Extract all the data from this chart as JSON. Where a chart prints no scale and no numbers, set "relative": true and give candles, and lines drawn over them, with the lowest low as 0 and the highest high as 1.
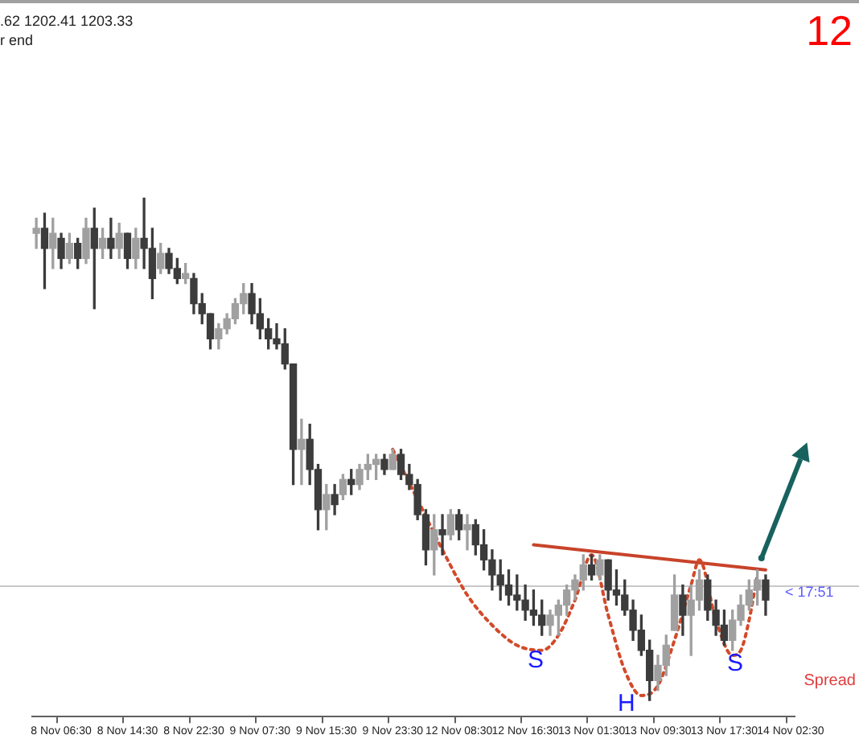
{
  "chart_data": {
    "type": "candlestick",
    "relative": true,
    "colors": [
      "#a0a0a0",
      "#3c3c3c",
      "#a0a0a0",
      "#3c3c3c",
      "#a0a0a0",
      "#3c3c3c",
      "#a0a0a0",
      "#3c3c3c",
      "#a0a0a0",
      "#3c3c3c",
      "#a0a0a0",
      "#3c3c3c",
      "#a0a0a0",
      "#3c3c3c",
      "#3c3c3c",
      "#a0a0a0",
      "#3c3c3c",
      "#3c3c3c",
      "#a0a0a0",
      "#3c3c3c",
      "#3c3c3c",
      "#3c3c3c",
      "#a0a0a0",
      "#a0a0a0",
      "#a0a0a0",
      "#a0a0a0",
      "#3c3c3c",
      "#3c3c3c",
      "#3c3c3c",
      "#3c3c3c",
      "#3c3c3c",
      "#3c3c3c",
      "#a0a0a0",
      "#3c3c3c",
      "#3c3c3c",
      "#a0a0a0",
      "#3c3c3c",
      "#a0a0a0",
      "#3c3c3c",
      "#a0a0a0",
      "#a0a0a0",
      "#a0a0a0",
      "#3c3c3c",
      "#a0a0a0",
      "#3c3c3c",
      "#3c3c3c",
      "#3c3c3c",
      "#3c3c3c",
      "#a0a0a0",
      "#3c3c3c",
      "#a0a0a0",
      "#3c3c3c",
      "#a0a0a0",
      "#3c3c3c",
      "#3c3c3c",
      "#3c3c3c",
      "#3c3c3c",
      "#3c3c3c",
      "#3c3c3c",
      "#3c3c3c",
      "#3c3c3c",
      "#3c3c3c",
      "#a0a0a0",
      "#a0a0a0",
      "#a0a0a0",
      "#a0a0a0",
      "#a0a0a0",
      "#3c3c3c",
      "#a0a0a0",
      "#3c3c3c",
      "#3c3c3c",
      "#3c3c3c",
      "#3c3c3c",
      "#3c3c3c",
      "#3c3c3c",
      "#a0a0a0",
      "#a0a0a0",
      "#a0a0a0",
      "#3c3c3c",
      "#a0a0a0",
      "#a0a0a0",
      "#3c3c3c",
      "#3c3c3c",
      "#3c3c3c",
      "#a0a0a0",
      "#a0a0a0",
      "#a0a0a0",
      "#a0a0a0",
      "#3c3c3c",
      null,
      null,
      null
    ],
    "tick_labels": "x",
    "grid": false,
    "legend": false,
    "marker": "none",
    "categories": [
      null,
      null,
      null,
      "8 Nov 06:30",
      null,
      null,
      null,
      null,
      null,
      null,
      null,
      "8 Nov 14:30",
      null,
      null,
      null,
      null,
      null,
      null,
      null,
      "8 Nov 22:30",
      null,
      null,
      null,
      null,
      null,
      null,
      null,
      "9 Nov 07:30",
      null,
      null,
      null,
      null,
      null,
      null,
      null,
      "9 Nov 15:30",
      null,
      null,
      null,
      null,
      null,
      null,
      null,
      "9 Nov 23:30",
      null,
      null,
      null,
      null,
      null,
      null,
      null,
      "12 Nov 08:30",
      null,
      null,
      null,
      null,
      null,
      null,
      null,
      "12 Nov 16:30",
      null,
      null,
      null,
      null,
      null,
      null,
      null,
      "13 Nov 01:30",
      null,
      null,
      null,
      null,
      null,
      null,
      null,
      "13 Nov 09:30",
      null,
      null,
      null,
      null,
      null,
      null,
      null,
      "13 Nov 17:30",
      null,
      null,
      null,
      null,
      null,
      null,
      null,
      "14 Nov 02:30"
    ],
    "ohlc": [
      [
        0.93,
        0.96,
        0.9,
        0.94
      ],
      [
        0.94,
        0.97,
        0.82,
        0.9
      ],
      [
        0.9,
        0.96,
        0.86,
        0.93
      ],
      [
        0.92,
        0.93,
        0.86,
        0.88
      ],
      [
        0.88,
        0.93,
        0.87,
        0.91
      ],
      [
        0.91,
        0.92,
        0.86,
        0.88
      ],
      [
        0.88,
        0.96,
        0.87,
        0.94
      ],
      [
        0.94,
        0.98,
        0.78,
        0.9
      ],
      [
        0.9,
        0.94,
        0.88,
        0.92
      ],
      [
        0.92,
        0.96,
        0.88,
        0.9
      ],
      [
        0.9,
        0.95,
        0.88,
        0.93
      ],
      [
        0.93,
        0.93,
        0.86,
        0.88
      ],
      [
        0.88,
        0.94,
        0.86,
        0.92
      ],
      [
        0.92,
        1.0,
        0.86,
        0.9
      ],
      [
        0.9,
        0.94,
        0.8,
        0.84
      ],
      [
        0.86,
        0.91,
        0.85,
        0.89
      ],
      [
        0.89,
        0.9,
        0.85,
        0.86
      ],
      [
        0.86,
        0.88,
        0.83,
        0.84
      ],
      [
        0.84,
        0.87,
        0.83,
        0.85
      ],
      [
        0.84,
        0.85,
        0.77,
        0.79
      ],
      [
        0.79,
        0.81,
        0.75,
        0.77
      ],
      [
        0.77,
        0.77,
        0.7,
        0.72
      ],
      [
        0.72,
        0.75,
        0.7,
        0.74
      ],
      [
        0.74,
        0.77,
        0.73,
        0.76
      ],
      [
        0.76,
        0.8,
        0.75,
        0.79
      ],
      [
        0.79,
        0.83,
        0.77,
        0.81
      ],
      [
        0.81,
        0.83,
        0.75,
        0.77
      ],
      [
        0.77,
        0.8,
        0.72,
        0.74
      ],
      [
        0.74,
        0.76,
        0.7,
        0.72
      ],
      [
        0.72,
        0.75,
        0.7,
        0.71
      ],
      [
        0.71,
        0.74,
        0.66,
        0.67
      ],
      [
        0.67,
        0.67,
        0.43,
        0.5
      ],
      [
        0.5,
        0.56,
        0.43,
        0.52
      ],
      [
        0.52,
        0.55,
        0.43,
        0.46
      ],
      [
        0.46,
        0.47,
        0.34,
        0.38
      ],
      [
        0.38,
        0.43,
        0.34,
        0.41
      ],
      [
        0.41,
        0.43,
        0.37,
        0.39
      ],
      [
        0.41,
        0.45,
        0.4,
        0.44
      ],
      [
        0.44,
        0.46,
        0.41,
        0.43
      ],
      [
        0.43,
        0.47,
        0.42,
        0.46
      ],
      [
        0.46,
        0.49,
        0.44,
        0.47
      ],
      [
        0.47,
        0.49,
        0.44,
        0.48
      ],
      [
        0.48,
        0.49,
        0.45,
        0.46
      ],
      [
        0.46,
        0.5,
        0.46,
        0.49
      ],
      [
        0.49,
        0.5,
        0.44,
        0.45
      ],
      [
        0.45,
        0.47,
        0.42,
        0.43
      ],
      [
        0.43,
        0.44,
        0.36,
        0.37
      ],
      [
        0.37,
        0.38,
        0.27,
        0.3
      ],
      [
        0.3,
        0.37,
        0.25,
        0.34
      ],
      [
        0.34,
        0.37,
        0.29,
        0.33
      ],
      [
        0.33,
        0.38,
        0.32,
        0.37
      ],
      [
        0.37,
        0.38,
        0.32,
        0.34
      ],
      [
        0.34,
        0.37,
        0.3,
        0.35
      ],
      [
        0.35,
        0.36,
        0.29,
        0.31
      ],
      [
        0.31,
        0.34,
        0.26,
        0.28
      ],
      [
        0.28,
        0.3,
        0.22,
        0.25
      ],
      [
        0.25,
        0.28,
        0.2,
        0.23
      ],
      [
        0.23,
        0.26,
        0.19,
        0.21
      ],
      [
        0.21,
        0.25,
        0.18,
        0.2
      ],
      [
        0.2,
        0.23,
        0.16,
        0.18
      ],
      [
        0.18,
        0.22,
        0.15,
        0.17
      ],
      [
        0.17,
        0.2,
        0.13,
        0.15
      ],
      [
        0.15,
        0.18,
        0.13,
        0.17
      ],
      [
        0.17,
        0.2,
        0.13,
        0.19
      ],
      [
        0.19,
        0.23,
        0.17,
        0.22
      ],
      [
        0.22,
        0.25,
        0.2,
        0.24
      ],
      [
        0.24,
        0.29,
        0.22,
        0.27
      ],
      [
        0.27,
        0.29,
        0.24,
        0.25
      ],
      [
        0.25,
        0.29,
        0.24,
        0.28
      ],
      [
        0.28,
        0.28,
        0.2,
        0.22
      ],
      [
        0.22,
        0.26,
        0.19,
        0.21
      ],
      [
        0.21,
        0.24,
        0.17,
        0.18
      ],
      [
        0.18,
        0.2,
        0.12,
        0.14
      ],
      [
        0.14,
        0.17,
        0.09,
        0.1
      ],
      [
        0.1,
        0.12,
        0.0,
        0.04
      ],
      [
        0.04,
        0.09,
        0.02,
        0.07
      ],
      [
        0.07,
        0.13,
        0.05,
        0.11
      ],
      [
        0.14,
        0.25,
        0.14,
        0.21
      ],
      [
        0.21,
        0.23,
        0.13,
        0.17
      ],
      [
        0.17,
        0.23,
        0.09,
        0.2
      ],
      [
        0.2,
        0.26,
        0.18,
        0.24
      ],
      [
        0.24,
        0.25,
        0.16,
        0.18
      ],
      [
        0.18,
        0.2,
        0.13,
        0.15
      ],
      [
        0.15,
        0.18,
        0.11,
        0.12
      ],
      [
        0.12,
        0.18,
        0.1,
        0.16
      ],
      [
        0.16,
        0.21,
        0.15,
        0.19
      ],
      [
        0.19,
        0.24,
        0.18,
        0.22
      ],
      [
        0.22,
        0.26,
        0.19,
        0.24
      ],
      [
        0.24,
        0.25,
        0.17,
        0.2
      ],
      null,
      null,
      null
    ],
    "series": [
      {
        "type": "line",
        "color": "#d24a2a",
        "line_style": "dotted",
        "values": [
          null,
          null,
          null,
          null,
          null,
          null,
          null,
          null,
          null,
          null,
          null,
          null,
          null,
          null,
          null,
          null,
          null,
          null,
          null,
          null,
          null,
          null,
          null,
          null,
          null,
          null,
          null,
          null,
          null,
          null,
          null,
          null,
          null,
          null,
          null,
          null,
          null,
          null,
          null,
          null,
          null,
          null,
          null,
          0.5,
          null,
          null,
          0.4,
          null,
          null,
          0.3,
          null,
          null,
          0.21,
          null,
          null,
          0.15,
          null,
          null,
          0.11,
          null,
          null,
          0.1,
          null,
          0.13,
          null,
          0.2,
          null,
          0.29,
          null,
          0.17,
          null,
          0.06,
          null,
          0.01,
          null,
          0.03,
          null,
          0.12,
          null,
          0.23,
          0.28,
          null,
          0.16,
          null,
          0.09,
          0.1,
          0.16,
          0.25,
          null,
          null,
          null,
          null
        ]
      },
      {
        "type": "line",
        "color": "#c8432a",
        "line_style": "solid",
        "values": [
          null,
          null,
          null,
          null,
          null,
          null,
          null,
          null,
          null,
          null,
          null,
          null,
          null,
          null,
          null,
          null,
          null,
          null,
          null,
          null,
          null,
          null,
          null,
          null,
          null,
          null,
          null,
          null,
          null,
          null,
          null,
          null,
          null,
          null,
          null,
          null,
          null,
          null,
          null,
          null,
          null,
          null,
          null,
          null,
          null,
          null,
          null,
          null,
          null,
          null,
          null,
          null,
          null,
          null,
          null,
          null,
          null,
          null,
          null,
          null,
          0.31,
          null,
          null,
          null,
          null,
          null,
          null,
          null,
          null,
          null,
          null,
          null,
          null,
          null,
          null,
          null,
          null,
          null,
          null,
          null,
          null,
          null,
          null,
          null,
          null,
          null,
          null,
          null,
          0.26,
          null,
          null,
          null
        ]
      }
    ],
    "ref_lines": [
      {
        "axis": "y",
        "value": 0.23,
        "color": "#c8c8c8"
      }
    ],
    "annotations": [
      ".62 1202.41 1203.33",
      "r end",
      "12",
      "Spread",
      "S",
      "H",
      "S",
      "< 17:51"
    ]
  }
}
